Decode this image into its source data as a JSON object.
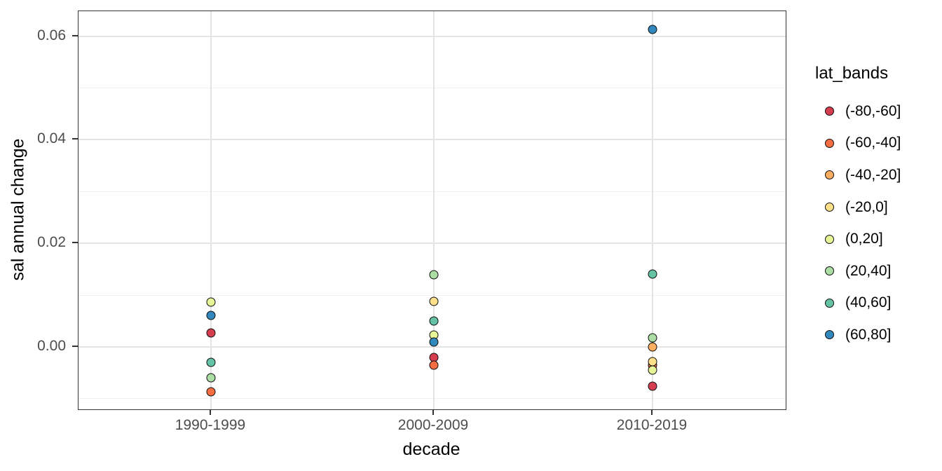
{
  "chart_data": {
    "type": "scatter",
    "title": "",
    "xlabel": "decade",
    "ylabel": "sal annual change",
    "categories": [
      "1990-1999",
      "2000-2009",
      "2010-2019"
    ],
    "y_axis": {
      "tick_labels": [
        "0.00",
        "0.02",
        "0.04",
        "0.06"
      ],
      "tick_values": [
        0,
        0.02,
        0.04,
        0.06
      ],
      "minor_tick_values": [
        -0.01,
        0.01,
        0.03,
        0.05
      ],
      "ylim": [
        -0.0122,
        0.065
      ],
      "grid": true
    },
    "legend": {
      "title": "lat_bands",
      "position": "right",
      "marker": "circle-outlined"
    },
    "series": [
      {
        "name": "(-80,-60]",
        "color": "#d53e4f",
        "values": [
          0.0027,
          -0.002,
          -0.0076
        ]
      },
      {
        "name": "(-60,-40]",
        "color": "#f46d43",
        "values": [
          -0.0087,
          -0.0035,
          -0.0035
        ]
      },
      {
        "name": "(-40,-20]",
        "color": "#fdae61",
        "values": [
          null,
          null,
          0.0
        ]
      },
      {
        "name": "(-20,0]",
        "color": "#fee08b",
        "values": [
          null,
          0.0088,
          -0.0028
        ]
      },
      {
        "name": "(0,20]",
        "color": "#e6f598",
        "values": [
          0.0087,
          0.0023,
          -0.0045
        ]
      },
      {
        "name": "(20,40]",
        "color": "#abdda4",
        "values": [
          -0.006,
          0.0139,
          0.0018
        ]
      },
      {
        "name": "(40,60]",
        "color": "#66c2a5",
        "values": [
          -0.003,
          0.005,
          0.0141
        ]
      },
      {
        "name": "(60,80]",
        "color": "#3288bd",
        "values": [
          0.0061,
          0.001,
          0.0613
        ]
      }
    ]
  },
  "colors": {
    "background": "#ffffff",
    "panel_border": "#333333",
    "grid_major": "#e4e4e4",
    "grid_minor": "#f1f1f1",
    "tick_label": "#4d4d4d",
    "axis_title": "#000000",
    "point_stroke": "#0d0d0d"
  }
}
